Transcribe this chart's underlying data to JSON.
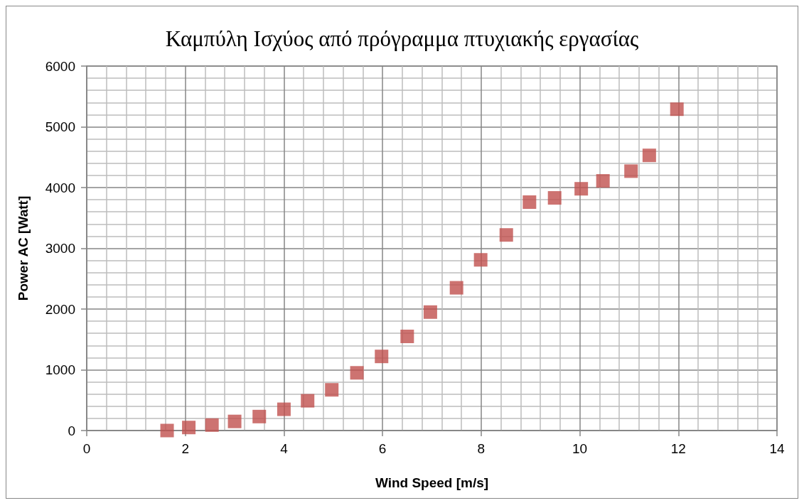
{
  "chart_data": {
    "type": "scatter",
    "title": "Καμπύλη Ισχύος από πρόγραμμα πτυχιακής εργασίας",
    "xlabel": "Wind Speed [m/s]",
    "ylabel": "Power AC [Watt]",
    "x": [
      1.63,
      2.07,
      2.54,
      3.0,
      3.5,
      4.0,
      4.48,
      4.97,
      5.48,
      5.98,
      6.5,
      6.97,
      7.5,
      7.99,
      8.51,
      8.98,
      9.49,
      10.03,
      10.47,
      11.04,
      11.41,
      11.97
    ],
    "values": [
      0,
      50,
      90,
      150,
      230,
      350,
      490,
      670,
      950,
      1220,
      1550,
      1950,
      2350,
      2810,
      3220,
      3760,
      3830,
      3980,
      4110,
      4270,
      4530,
      5290
    ],
    "color": "#c0504d",
    "marker": "square",
    "xlim": [
      0,
      14
    ],
    "xticks": [
      0,
      2,
      4,
      6,
      8,
      10,
      12,
      14
    ],
    "ylim": [
      0,
      6000
    ],
    "yticks": [
      0,
      1000,
      2000,
      3000,
      4000,
      5000,
      6000
    ],
    "grid": true
  }
}
